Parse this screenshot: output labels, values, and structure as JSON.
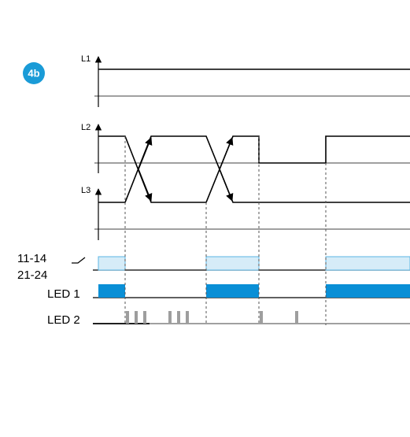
{
  "figure": {
    "badge": "4b",
    "badge_color": "#1A9BD7",
    "signals": {
      "L1": "L1",
      "L2": "L2",
      "L3": "L3",
      "contacts_top": "11-14",
      "contacts_bottom": "21-24",
      "led1": "LED 1",
      "led2": "LED 2"
    },
    "colors": {
      "contact_fill": "#D6ECF8",
      "contact_stroke": "#5BB6E4",
      "led1_fill": "#0A8FD6",
      "led2_blink": "#9E9E9E",
      "line": "#000000",
      "marker": "#555555"
    }
  }
}
